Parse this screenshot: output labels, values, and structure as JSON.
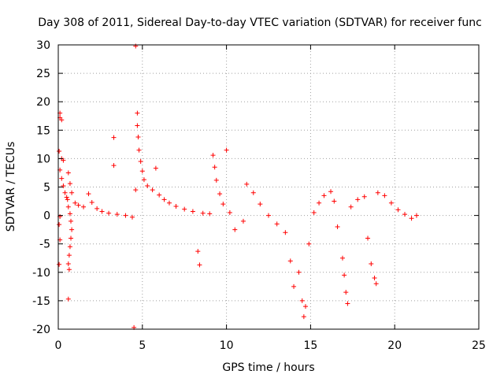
{
  "chart_data": {
    "type": "scatter",
    "title": "Day 308 of 2011, Sidereal Day-to-day VTEC variation (SDTVAR) for receiver func",
    "xlabel": "GPS time / hours",
    "ylabel": "SDTVAR / TECUs",
    "xlim": [
      0,
      25
    ],
    "ylim": [
      -20,
      30
    ],
    "xticks": [
      0,
      5,
      10,
      15,
      20,
      25
    ],
    "yticks": [
      -20,
      -15,
      -10,
      -5,
      0,
      5,
      10,
      15,
      20,
      25,
      30
    ],
    "grid": true,
    "marker": "+",
    "color": "#ff0000",
    "series": [
      {
        "name": "SDTVAR",
        "points": [
          [
            0.1,
            18.0
          ],
          [
            0.1,
            17.2
          ],
          [
            0.2,
            16.8
          ],
          [
            0.05,
            11.3
          ],
          [
            0.2,
            10.0
          ],
          [
            0.3,
            9.7
          ],
          [
            0.1,
            8.0
          ],
          [
            0.2,
            6.5
          ],
          [
            0.3,
            5.2
          ],
          [
            0.4,
            4.0
          ],
          [
            0.5,
            3.2
          ],
          [
            0.6,
            7.5
          ],
          [
            0.7,
            5.6
          ],
          [
            0.8,
            4.0
          ],
          [
            0.55,
            2.8
          ],
          [
            0.6,
            1.5
          ],
          [
            0.7,
            0.3
          ],
          [
            0.75,
            -1.0
          ],
          [
            0.8,
            -2.5
          ],
          [
            0.75,
            -4.0
          ],
          [
            0.7,
            -5.5
          ],
          [
            0.65,
            -7.0
          ],
          [
            0.6,
            -8.5
          ],
          [
            0.65,
            -9.5
          ],
          [
            0.6,
            -14.7
          ],
          [
            0.05,
            -8.6
          ],
          [
            0.1,
            -4.3
          ],
          [
            0.05,
            -1.6
          ],
          [
            0.1,
            -0.2
          ],
          [
            1.0,
            2.2
          ],
          [
            1.2,
            1.8
          ],
          [
            1.5,
            1.5
          ],
          [
            1.8,
            3.8
          ],
          [
            2.0,
            2.3
          ],
          [
            2.3,
            1.2
          ],
          [
            2.6,
            0.7
          ],
          [
            3.0,
            0.4
          ],
          [
            3.3,
            13.7
          ],
          [
            3.3,
            8.8
          ],
          [
            3.5,
            0.2
          ],
          [
            4.0,
            0.0
          ],
          [
            4.4,
            -0.3
          ],
          [
            4.6,
            29.8
          ],
          [
            4.5,
            -19.7
          ],
          [
            4.6,
            4.5
          ],
          [
            4.7,
            18.0
          ],
          [
            4.7,
            15.8
          ],
          [
            4.75,
            13.8
          ],
          [
            4.8,
            11.5
          ],
          [
            4.9,
            9.5
          ],
          [
            5.0,
            7.8
          ],
          [
            5.1,
            6.3
          ],
          [
            5.3,
            5.2
          ],
          [
            5.6,
            4.5
          ],
          [
            5.8,
            8.3
          ],
          [
            6.0,
            3.6
          ],
          [
            6.3,
            2.8
          ],
          [
            6.6,
            2.2
          ],
          [
            7.0,
            1.6
          ],
          [
            7.5,
            1.1
          ],
          [
            8.0,
            0.7
          ],
          [
            8.3,
            -6.3
          ],
          [
            8.4,
            -8.7
          ],
          [
            8.6,
            0.4
          ],
          [
            9.0,
            0.3
          ],
          [
            9.2,
            10.6
          ],
          [
            9.3,
            8.5
          ],
          [
            9.4,
            6.2
          ],
          [
            9.6,
            3.8
          ],
          [
            10.0,
            11.5
          ],
          [
            9.8,
            2.0
          ],
          [
            10.2,
            0.5
          ],
          [
            10.5,
            -2.5
          ],
          [
            11.0,
            -1.0
          ],
          [
            11.2,
            5.5
          ],
          [
            11.6,
            4.0
          ],
          [
            12.0,
            2.0
          ],
          [
            12.5,
            0.0
          ],
          [
            13.0,
            -1.5
          ],
          [
            13.5,
            -3.0
          ],
          [
            13.8,
            -8.0
          ],
          [
            14.0,
            -12.5
          ],
          [
            14.3,
            -10.0
          ],
          [
            14.5,
            -15.0
          ],
          [
            14.6,
            -17.8
          ],
          [
            14.7,
            -16.0
          ],
          [
            14.9,
            -5.0
          ],
          [
            15.2,
            0.5
          ],
          [
            15.5,
            2.2
          ],
          [
            15.8,
            3.5
          ],
          [
            16.2,
            4.2
          ],
          [
            16.4,
            2.5
          ],
          [
            16.6,
            -2.0
          ],
          [
            16.9,
            -7.5
          ],
          [
            17.0,
            -10.5
          ],
          [
            17.1,
            -13.5
          ],
          [
            17.2,
            -15.5
          ],
          [
            17.4,
            1.5
          ],
          [
            17.8,
            2.8
          ],
          [
            18.2,
            3.3
          ],
          [
            18.4,
            -4.0
          ],
          [
            18.6,
            -8.5
          ],
          [
            18.8,
            -11.0
          ],
          [
            18.9,
            -12.0
          ],
          [
            19.0,
            4.0
          ],
          [
            19.4,
            3.5
          ],
          [
            19.8,
            2.2
          ],
          [
            20.2,
            1.0
          ],
          [
            20.6,
            0.2
          ],
          [
            21.0,
            -0.5
          ],
          [
            21.3,
            0.0
          ]
        ]
      }
    ]
  }
}
